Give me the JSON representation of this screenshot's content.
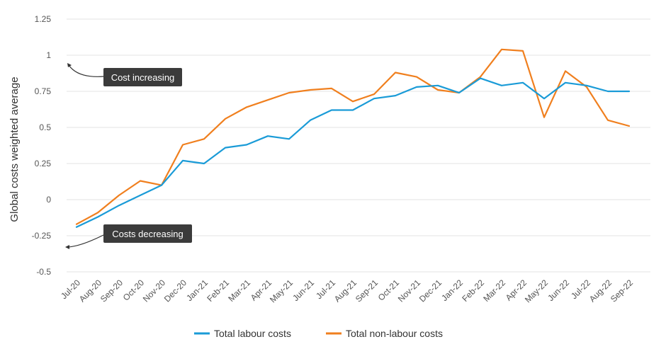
{
  "chart_data": {
    "type": "line",
    "ylabel": "Global costs weighted average",
    "xlabel": "",
    "ylim": [
      -0.5,
      1.25
    ],
    "yticks": [
      "1.25",
      "1",
      "0.75",
      "0.5",
      "0.25",
      "0",
      "-0.25",
      "-0.5"
    ],
    "ytick_values": [
      1.25,
      1,
      0.75,
      0.5,
      0.25,
      0,
      -0.25,
      -0.5
    ],
    "grid": "horizontal",
    "legend_position": "bottom",
    "categories": [
      "Jul-20",
      "Aug-20",
      "Sep-20",
      "Oct-20",
      "Nov-20",
      "Dec-20",
      "Jan-21",
      "Feb-21",
      "Mar-21",
      "Apr-21",
      "May-21",
      "Jun-21",
      "Jul-21",
      "Aug-21",
      "Sep-21",
      "Oct-21",
      "Nov-21",
      "Dec-21",
      "Jan-22",
      "Feb-22",
      "Mar-22",
      "Apr-22",
      "May-22",
      "Jun-22",
      "Jul-22",
      "Aug-22",
      "Sep-22"
    ],
    "series": [
      {
        "name": "Total labour costs",
        "color": "#1a9bd7",
        "values": [
          -0.19,
          -0.12,
          -0.04,
          0.03,
          0.1,
          0.27,
          0.25,
          0.36,
          0.38,
          0.44,
          0.42,
          0.55,
          0.62,
          0.62,
          0.7,
          0.72,
          0.78,
          0.79,
          0.74,
          0.84,
          0.79,
          0.81,
          0.7,
          0.81,
          0.79,
          0.75,
          0.75
        ]
      },
      {
        "name": "Total non-labour costs",
        "color": "#f07f1e",
        "values": [
          -0.17,
          -0.09,
          0.03,
          0.13,
          0.1,
          0.38,
          0.42,
          0.56,
          0.64,
          0.69,
          0.74,
          0.76,
          0.77,
          0.68,
          0.73,
          0.88,
          0.85,
          0.76,
          0.74,
          0.85,
          1.04,
          1.03,
          0.57,
          0.89,
          0.78,
          0.55,
          0.51
        ]
      }
    ],
    "annotations": [
      {
        "text": "Cost increasing",
        "color": "#333333"
      },
      {
        "text": "Costs decreasing",
        "color": "#333333"
      }
    ]
  }
}
